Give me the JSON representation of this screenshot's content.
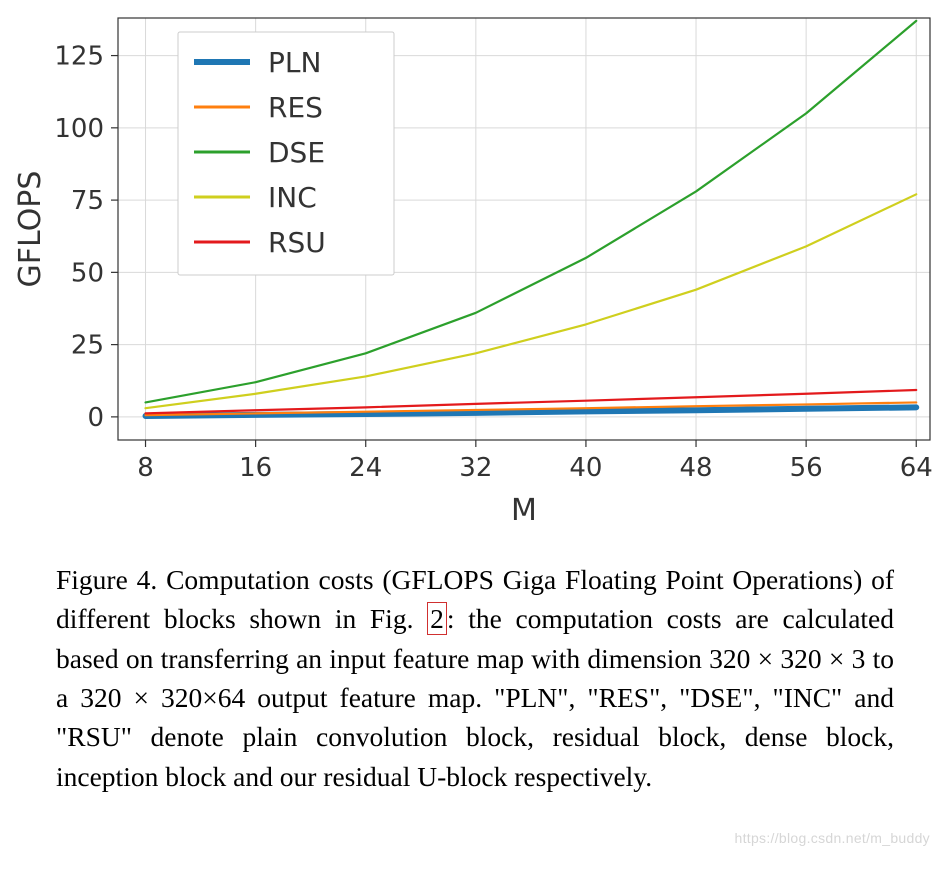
{
  "chart": {
    "type": "line",
    "xlabel": "M",
    "ylabel": "GFLOPS",
    "label_fontsize": 30,
    "tick_fontsize": 26,
    "background_color": "#ffffff",
    "grid_color": "#d9d9d9",
    "axis_color": "#333333",
    "xlim": [
      6,
      65
    ],
    "ylim": [
      -8,
      138
    ],
    "xticks": [
      8,
      16,
      24,
      32,
      40,
      48,
      56,
      64
    ],
    "yticks": [
      0,
      25,
      50,
      75,
      100,
      125
    ],
    "legend": {
      "position": "upper-left",
      "items": [
        "PLN",
        "RES",
        "DSE",
        "INC",
        "RSU"
      ],
      "fontsize": 28,
      "border_color": "#cccccc",
      "bg_color": "#ffffff"
    },
    "series": [
      {
        "name": "PLN",
        "color": "#1f77b4",
        "line_width": 6,
        "x": [
          8,
          16,
          24,
          32,
          40,
          48,
          56,
          64
        ],
        "y": [
          0.3,
          0.7,
          1.0,
          1.4,
          1.9,
          2.3,
          2.8,
          3.3
        ]
      },
      {
        "name": "RES",
        "color": "#ff7f0e",
        "line_width": 2.2,
        "x": [
          8,
          16,
          24,
          32,
          40,
          48,
          56,
          64
        ],
        "y": [
          0.6,
          1.2,
          1.8,
          2.4,
          3.0,
          3.7,
          4.3,
          5.0
        ]
      },
      {
        "name": "DSE",
        "color": "#2ca02c",
        "line_width": 2.2,
        "x": [
          8,
          16,
          24,
          32,
          40,
          48,
          56,
          64
        ],
        "y": [
          5,
          12,
          22,
          36,
          55,
          78,
          105,
          137
        ]
      },
      {
        "name": "INC",
        "color": "#cfcf1e",
        "line_width": 2.2,
        "x": [
          8,
          16,
          24,
          32,
          40,
          48,
          56,
          64
        ],
        "y": [
          3,
          8,
          14,
          22,
          32,
          44,
          59,
          77
        ]
      },
      {
        "name": "RSU",
        "color": "#e31a1c",
        "line_width": 2.2,
        "x": [
          8,
          16,
          24,
          32,
          40,
          48,
          56,
          64
        ],
        "y": [
          1.2,
          2.3,
          3.3,
          4.5,
          5.6,
          6.8,
          8.0,
          9.3
        ]
      }
    ]
  },
  "caption": {
    "fig_label": "Figure 4.",
    "text_before_ref": " Computation costs (GFLOPS Giga Floating Point Operations) of different blocks shown in Fig. ",
    "fig_ref": "2",
    "text_after_ref": ": the computation costs are calculated based on transferring an input feature map with dimension 320 × 320 × 3 to a 320 × 320×64 output feature map. \"PLN\", \"RES\", \"DSE\", \"INC\" and \"RSU\" denote plain convolution block, residual block, dense block, inception block and our residual U-block respectively.",
    "fontsize": 27.5,
    "font_family": "serif"
  },
  "watermark": "https://blog.csdn.net/m_buddy"
}
